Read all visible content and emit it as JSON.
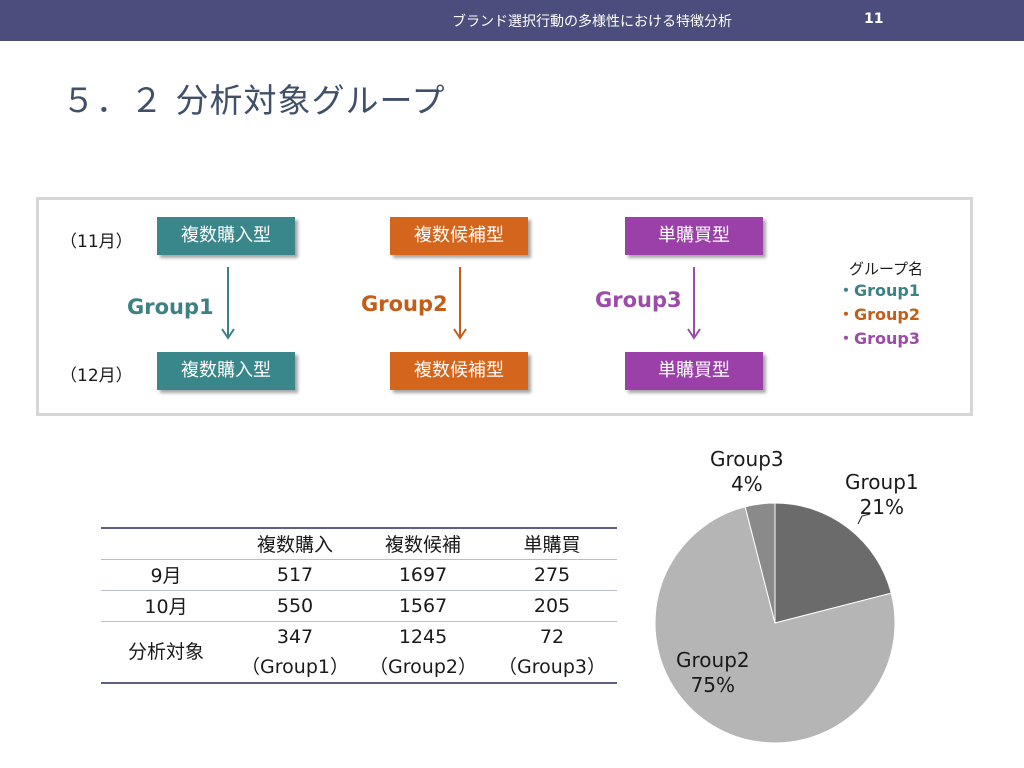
{
  "header": {
    "title": "ブランド選択行動の多様性における特徴分析",
    "page_number": "11"
  },
  "slide": {
    "title": "５．２  分析対象グループ"
  },
  "diagram": {
    "month_top": "（11月）",
    "month_bottom": "（12月）",
    "columns": [
      {
        "type_top": "複数購入型",
        "type_bottom": "複数購入型",
        "group": "Group1",
        "color": "#3a878b"
      },
      {
        "type_top": "複数候補型",
        "type_bottom": "複数候補型",
        "group": "Group2",
        "color": "#d4651c"
      },
      {
        "type_top": "単購買型",
        "type_bottom": "単購買型",
        "group": "Group3",
        "color": "#9b40a9"
      }
    ],
    "legend": {
      "title": "グループ名",
      "items": [
        "・Group1",
        "・Group2",
        "・Group3"
      ]
    }
  },
  "table": {
    "headers": [
      "",
      "複数購入",
      "複数候補",
      "単購買"
    ],
    "rows": [
      {
        "label": "9月",
        "values": [
          "517",
          "1697",
          "275"
        ]
      },
      {
        "label": "10月",
        "values": [
          "550",
          "1567",
          "205"
        ]
      },
      {
        "label": "分析対象",
        "values": [
          "347",
          "1245",
          "72"
        ],
        "notes": [
          "（Group1）",
          "（Group2）",
          "（Group3）"
        ]
      }
    ]
  },
  "chart_data": {
    "type": "pie",
    "categories": [
      "Group1",
      "Group2",
      "Group3"
    ],
    "values": [
      21,
      75,
      4
    ],
    "labels": [
      "21%",
      "75%",
      "4%"
    ],
    "colors": [
      "#6b6b6b",
      "#b5b5b5",
      "#8a8a8a"
    ]
  }
}
